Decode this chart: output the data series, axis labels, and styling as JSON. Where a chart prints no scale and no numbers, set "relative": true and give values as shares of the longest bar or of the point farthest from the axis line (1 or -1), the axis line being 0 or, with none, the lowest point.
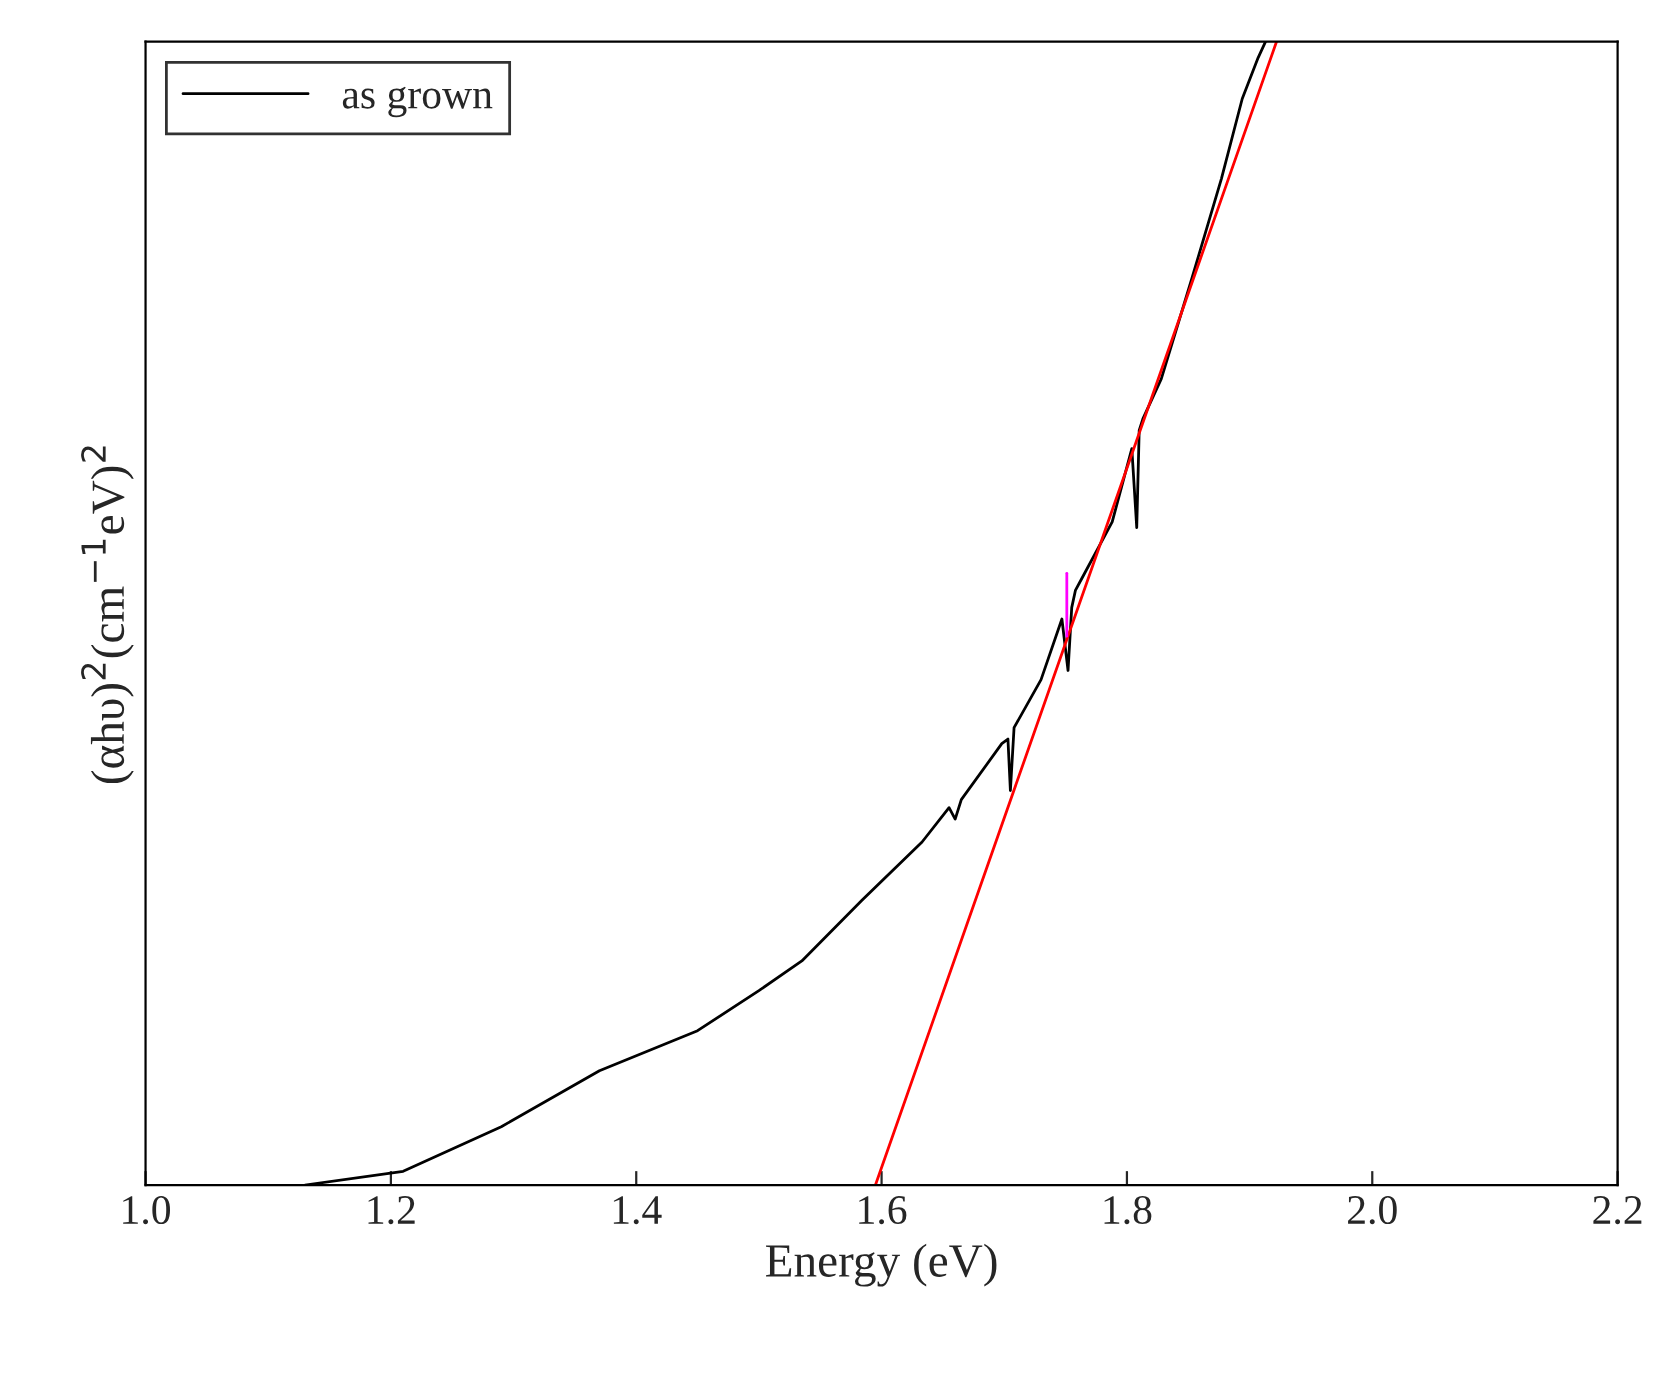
{
  "chart_data": {
    "type": "line",
    "relative": true,
    "xlabel": "Energy (eV)",
    "ylabel": "(αhυ)$^{2}$(cm$^{−1}$eV)$^{2}$",
    "xlim": [
      1.0,
      2.2
    ],
    "xticks": [
      {
        "value": 1.0,
        "label": "1.0"
      },
      {
        "value": 1.2,
        "label": "1.2"
      },
      {
        "value": 1.4,
        "label": "1.4"
      },
      {
        "value": 1.6,
        "label": "1.6"
      },
      {
        "value": 1.8,
        "label": "1.8"
      },
      {
        "value": 2.0,
        "label": "2.0"
      },
      {
        "value": 2.2,
        "label": "2.2"
      }
    ],
    "series": [
      {
        "name": "as grown",
        "color": "#000000",
        "x": [
          1.13,
          1.21,
          1.29,
          1.37,
          1.45,
          1.5,
          1.535,
          1.584,
          1.633,
          1.655,
          1.66,
          1.665,
          1.698,
          1.703,
          1.705,
          1.708,
          1.73,
          1.747,
          1.752,
          1.755,
          1.758,
          1.763,
          1.788,
          1.804,
          1.808,
          1.81,
          1.813,
          1.828,
          1.853,
          1.877,
          1.894,
          1.907,
          1.913
        ],
        "values": [
          0.0,
          0.012,
          0.051,
          0.1,
          0.135,
          0.17,
          0.196,
          0.249,
          0.3,
          0.33,
          0.32,
          0.337,
          0.386,
          0.39,
          0.345,
          0.4,
          0.442,
          0.495,
          0.45,
          0.505,
          0.52,
          0.53,
          0.58,
          0.644,
          0.575,
          0.66,
          0.67,
          0.705,
          0.793,
          0.88,
          0.95,
          0.986,
          1.0
        ]
      },
      {
        "color": "#ff0000",
        "x": [
          1.595,
          1.922
        ],
        "values": [
          0.0,
          1.0
        ]
      },
      {
        "color": "#ff00ff",
        "x": [
          1.751,
          1.751
        ],
        "values": [
          0.48,
          0.535
        ]
      }
    ],
    "legend": "top left",
    "grid": false
  }
}
